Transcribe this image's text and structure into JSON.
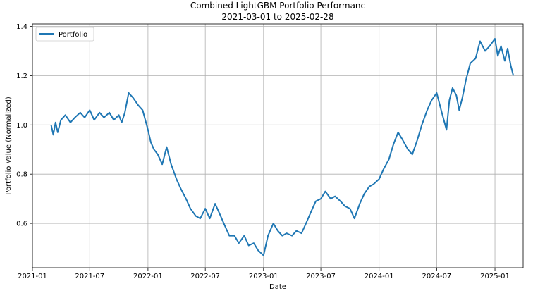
{
  "chart_data": {
    "type": "line",
    "title": "Combined LightGBM Portfolio Performanc",
    "subtitle": "2021-03-01 to 2025-02-28",
    "xlabel": "Date",
    "ylabel": "Portfolio Value (Normalized)",
    "xlim": [
      "2021-01-01",
      "2025-03-31"
    ],
    "ylim": [
      0.42,
      1.41
    ],
    "grid": true,
    "legend_position": "top-left",
    "x_ticks": [
      "2021-01",
      "2021-07",
      "2022-01",
      "2022-07",
      "2023-01",
      "2023-07",
      "2024-01",
      "2024-07",
      "2025-01"
    ],
    "y_ticks": [
      0.6,
      0.8,
      1.0,
      1.2,
      1.4
    ],
    "y_tick_labels": [
      "0.6",
      "0.8",
      "1.0",
      "1.2",
      "1.4"
    ],
    "series": [
      {
        "name": "Portfolio",
        "color": "#1f77b4",
        "x": [
          "2021-03-01",
          "2021-03-08",
          "2021-03-15",
          "2021-03-22",
          "2021-04-01",
          "2021-04-15",
          "2021-05-01",
          "2021-05-15",
          "2021-06-01",
          "2021-06-15",
          "2021-07-01",
          "2021-07-15",
          "2021-08-01",
          "2021-08-15",
          "2021-09-01",
          "2021-09-15",
          "2021-10-01",
          "2021-10-10",
          "2021-10-20",
          "2021-11-01",
          "2021-11-15",
          "2021-12-01",
          "2021-12-15",
          "2022-01-01",
          "2022-01-10",
          "2022-01-20",
          "2022-02-01",
          "2022-02-15",
          "2022-03-01",
          "2022-03-15",
          "2022-04-01",
          "2022-04-15",
          "2022-05-01",
          "2022-05-15",
          "2022-06-01",
          "2022-06-15",
          "2022-07-01",
          "2022-07-15",
          "2022-08-01",
          "2022-08-15",
          "2022-09-01",
          "2022-09-15",
          "2022-10-01",
          "2022-10-15",
          "2022-11-01",
          "2022-11-15",
          "2022-12-01",
          "2022-12-15",
          "2023-01-01",
          "2023-01-15",
          "2023-02-01",
          "2023-02-15",
          "2023-03-01",
          "2023-03-15",
          "2023-04-01",
          "2023-04-15",
          "2023-05-01",
          "2023-05-15",
          "2023-06-01",
          "2023-06-15",
          "2023-07-01",
          "2023-07-15",
          "2023-08-01",
          "2023-08-15",
          "2023-09-01",
          "2023-09-15",
          "2023-10-01",
          "2023-10-15",
          "2023-11-01",
          "2023-11-15",
          "2023-12-01",
          "2023-12-15",
          "2024-01-01",
          "2024-01-15",
          "2024-02-01",
          "2024-02-15",
          "2024-03-01",
          "2024-03-15",
          "2024-04-01",
          "2024-04-15",
          "2024-05-01",
          "2024-05-15",
          "2024-06-01",
          "2024-06-15",
          "2024-07-01",
          "2024-07-15",
          "2024-08-01",
          "2024-08-10",
          "2024-08-20",
          "2024-09-01",
          "2024-09-10",
          "2024-09-20",
          "2024-10-01",
          "2024-10-15",
          "2024-11-01",
          "2024-11-15",
          "2024-12-01",
          "2024-12-15",
          "2025-01-01",
          "2025-01-10",
          "2025-01-20",
          "2025-02-01",
          "2025-02-10",
          "2025-02-20",
          "2025-02-28"
        ],
        "y": [
          1.0,
          0.96,
          1.01,
          0.97,
          1.02,
          1.04,
          1.01,
          1.03,
          1.05,
          1.03,
          1.06,
          1.02,
          1.05,
          1.03,
          1.05,
          1.02,
          1.04,
          1.01,
          1.05,
          1.13,
          1.11,
          1.08,
          1.06,
          0.98,
          0.93,
          0.9,
          0.88,
          0.84,
          0.91,
          0.84,
          0.78,
          0.74,
          0.7,
          0.66,
          0.63,
          0.62,
          0.66,
          0.62,
          0.68,
          0.64,
          0.59,
          0.55,
          0.55,
          0.52,
          0.55,
          0.51,
          0.52,
          0.49,
          0.47,
          0.55,
          0.6,
          0.57,
          0.55,
          0.56,
          0.55,
          0.57,
          0.56,
          0.6,
          0.65,
          0.69,
          0.7,
          0.73,
          0.7,
          0.71,
          0.69,
          0.67,
          0.66,
          0.62,
          0.68,
          0.72,
          0.75,
          0.76,
          0.78,
          0.82,
          0.86,
          0.92,
          0.97,
          0.94,
          0.9,
          0.88,
          0.94,
          1.0,
          1.06,
          1.1,
          1.13,
          1.06,
          0.98,
          1.1,
          1.15,
          1.12,
          1.06,
          1.11,
          1.18,
          1.25,
          1.27,
          1.34,
          1.3,
          1.32,
          1.35,
          1.28,
          1.32,
          1.26,
          1.31,
          1.24,
          1.2
        ]
      }
    ]
  }
}
